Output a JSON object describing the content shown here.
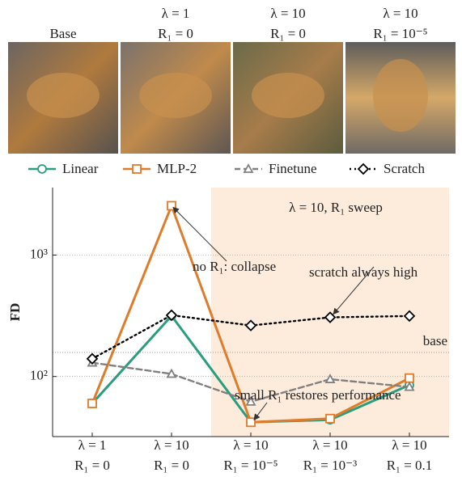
{
  "panels": [
    {
      "label": [
        "Base"
      ]
    },
    {
      "label": [
        "λ = 1",
        "R₁ = 0"
      ]
    },
    {
      "label": [
        "λ = 10",
        "R₁ = 0"
      ]
    },
    {
      "label": [
        "λ = 10",
        "R₁ = 10⁻⁵"
      ]
    }
  ],
  "chart_data": {
    "type": "line",
    "y_label": "FD",
    "log_y": true,
    "grid": true,
    "legend": "top",
    "categories": [
      [
        "λ = 1",
        "R₁ = 0"
      ],
      [
        "λ = 10",
        "R₁ = 0"
      ],
      [
        "λ = 10",
        "R₁ = 10⁻⁵"
      ],
      [
        "λ = 10",
        "R₁ = 10⁻³"
      ],
      [
        "λ = 10",
        "R₁ = 0.1"
      ]
    ],
    "ylim": [
      32,
      3600
    ],
    "yticks": [
      {
        "value": 100,
        "label": "10²"
      },
      {
        "value": 1000,
        "label": "10³"
      }
    ],
    "region_label": "λ = 10, R₁ sweep",
    "reference": {
      "label": "base",
      "value": 158
    },
    "annotations": [
      "no R₁: collapse",
      "scratch always high",
      "small R₁ restores performance"
    ],
    "series": [
      {
        "name": "Linear",
        "color": "#2a9d7f",
        "marker": "circle",
        "linestyle": "solid",
        "values": [
          60,
          316,
          42,
          44,
          85
        ]
      },
      {
        "name": "MLP-2",
        "color": "#e07b2a",
        "marker": "square",
        "linestyle": "solid",
        "values": [
          60,
          2550,
          42,
          45,
          97
        ]
      },
      {
        "name": "Finetune",
        "color": "#808080",
        "marker": "triangle",
        "linestyle": "dashed",
        "values": [
          130,
          105,
          62,
          95,
          82
        ]
      },
      {
        "name": "Scratch",
        "color": "#000000",
        "marker": "diamond",
        "linestyle": "dotted",
        "values": [
          140,
          320,
          263,
          307,
          315
        ]
      }
    ]
  }
}
